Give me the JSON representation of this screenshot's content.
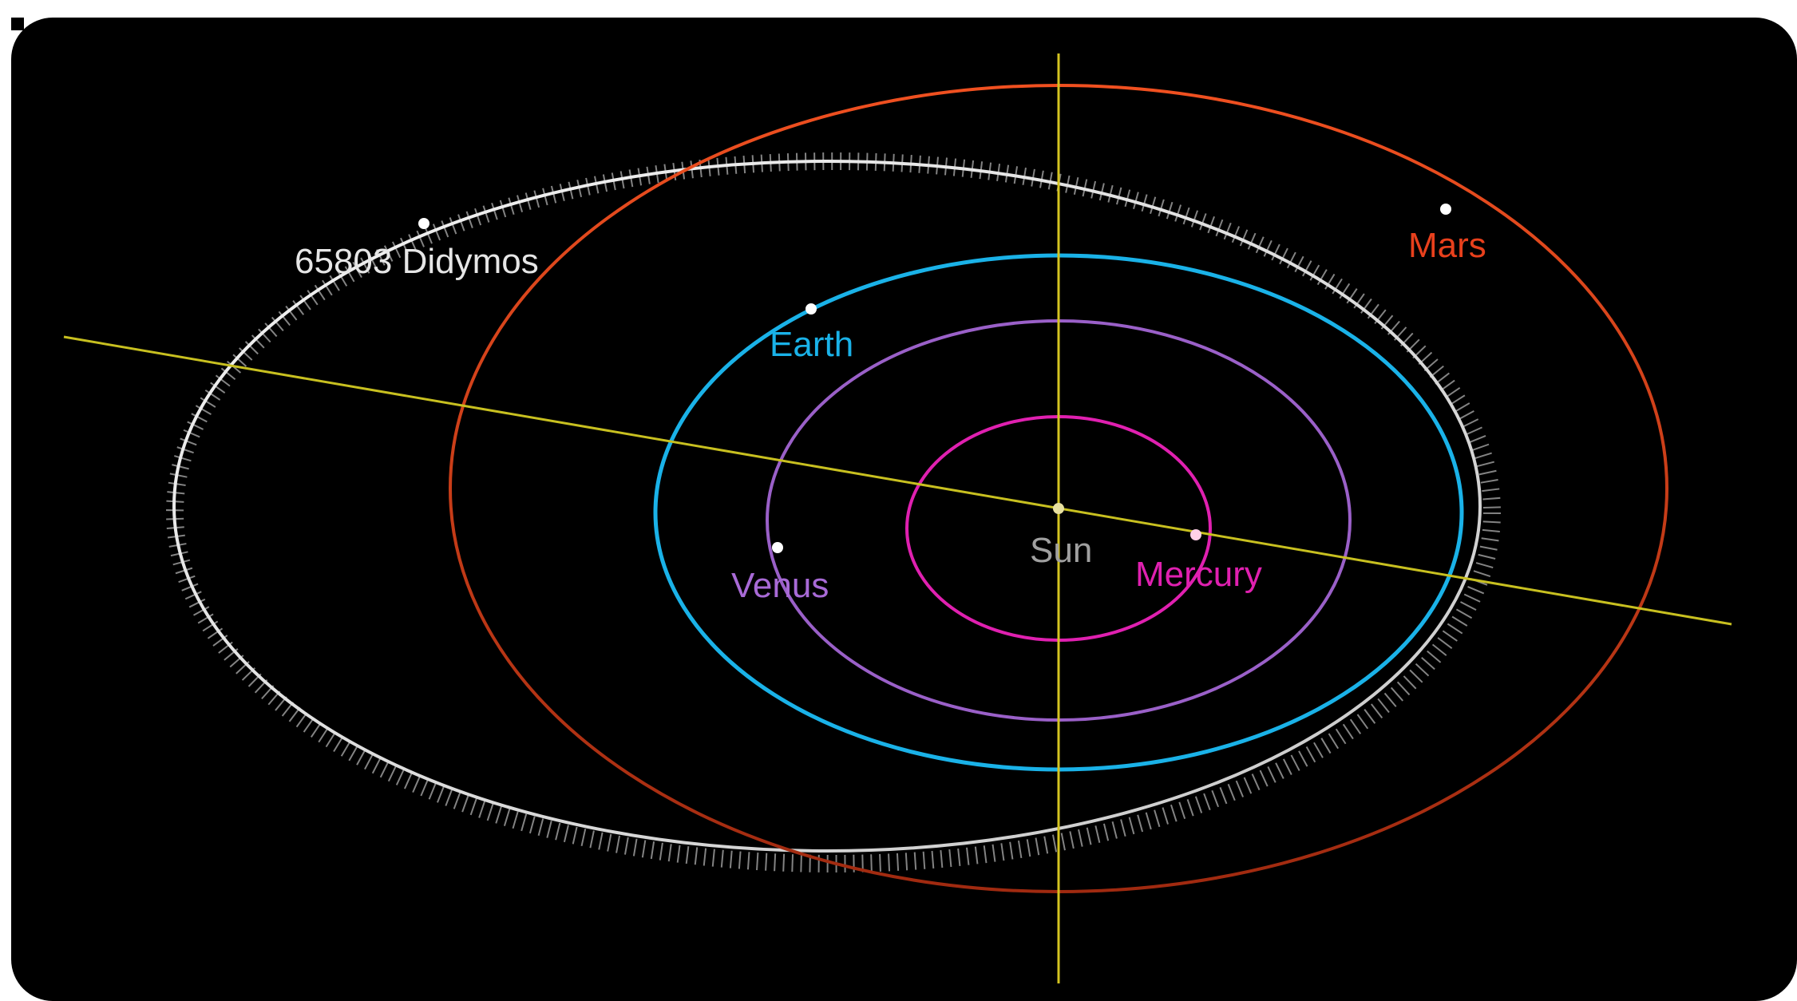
{
  "diagram": {
    "labels": {
      "asteroid": "65803 Didymos",
      "mars": "Mars",
      "earth": "Earth",
      "venus": "Venus",
      "mercury": "Mercury",
      "sun": "Sun"
    },
    "colors": {
      "background": "#000000",
      "didymos": "#e6e6e6",
      "mars": "#e8401c",
      "earth": "#1ab2e8",
      "venus": "#a86ad6",
      "mercury": "#e020b0",
      "sun": "#a0a0a0",
      "ecliptic_axis": "#c8c020",
      "vertical_axis": "#d4c420"
    }
  }
}
